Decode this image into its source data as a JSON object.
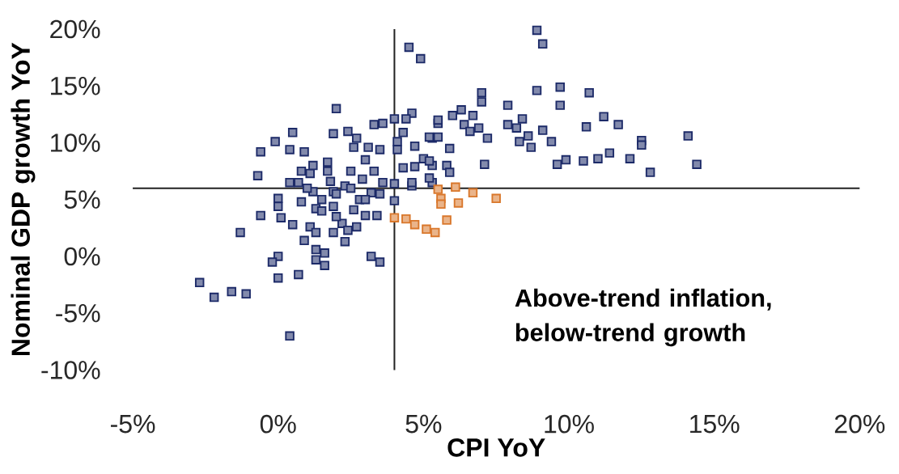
{
  "chart_data": {
    "type": "scatter",
    "xlabel": "CPI YoY",
    "ylabel": "Nominal GDP growth YoY",
    "xlim": [
      -5,
      20
    ],
    "ylim": [
      -10,
      20
    ],
    "xticks": [
      {
        "value": -5,
        "label": "-5%"
      },
      {
        "value": 0,
        "label": "0%"
      },
      {
        "value": 5,
        "label": "5%"
      },
      {
        "value": 10,
        "label": "10%"
      },
      {
        "value": 15,
        "label": "15%"
      },
      {
        "value": 20,
        "label": "20%"
      }
    ],
    "yticks": [
      {
        "value": -10,
        "label": "-10%"
      },
      {
        "value": -5,
        "label": "-5%"
      },
      {
        "value": 0,
        "label": "0%"
      },
      {
        "value": 5,
        "label": "5%"
      },
      {
        "value": 10,
        "label": "10%"
      },
      {
        "value": 15,
        "label": "15%"
      },
      {
        "value": 20,
        "label": "20%"
      }
    ],
    "marker": "square",
    "grid": false,
    "ref_lines": [
      {
        "axis": "x",
        "value": 4,
        "color": "#222222"
      },
      {
        "axis": "y",
        "value": 6,
        "color": "#222222"
      }
    ],
    "annotations": [
      "Above-trend inflation, below-trend growth"
    ],
    "series": [
      {
        "color": "#1c2a68",
        "x": [
          4.5,
          4.9,
          2.0,
          4.6,
          4.4,
          4.0,
          3.3,
          3.6,
          5.5,
          0.5,
          1.9,
          2.4,
          -0.1,
          -0.6,
          0.4,
          0.9,
          2.7,
          2.6,
          3.1,
          3.5,
          4.3,
          4.1,
          4.1,
          5.3,
          4.7,
          5.0,
          4.3,
          4.7,
          5.3,
          1.7,
          0.8,
          1.1,
          1.7,
          2.9,
          3.3,
          3.6,
          4.0,
          4.6,
          5.3,
          -0.7,
          0.4,
          0.7,
          1.8,
          2.3,
          0.0,
          1.2,
          1.9,
          2.8,
          3.2,
          4.0,
          0.0,
          -0.6,
          0.1,
          0.5,
          1.3,
          1.9,
          2.6,
          3.0,
          3.4,
          1.1,
          2.2,
          2.7,
          -1.3,
          0.9,
          2.3,
          1.3,
          1.9,
          2.4,
          1.3,
          1.6,
          1.3,
          1.6,
          0.0,
          -0.2,
          0.0,
          0.7,
          3.2,
          3.5,
          -2.7,
          -2.2,
          -1.6,
          -1.1,
          0.4,
          8.9,
          9.1,
          8.9,
          9.7,
          10.7,
          9.7,
          7.0,
          7.0,
          7.9,
          6.3,
          6.0,
          6.7,
          5.5,
          6.4,
          6.6,
          6.9,
          7.2,
          7.9,
          8.4,
          8.2,
          8.6,
          9.1,
          8.3,
          8.7,
          9.4,
          10.6,
          11.2,
          11.7,
          12.5,
          12.5,
          14.1,
          14.4,
          12.8,
          12.1,
          11.4,
          11.0,
          10.5,
          9.9,
          9.6,
          7.1,
          5.9,
          5.5,
          5.2,
          5.2,
          5.8,
          5.9,
          5.2,
          4.6,
          1.0,
          1.5,
          2.0,
          2.5,
          1.5,
          2.0,
          3.0,
          3.5,
          2.5,
          3.0,
          1.2,
          0.8
        ],
        "values": [
          18.4,
          17.4,
          13.0,
          12.6,
          12.1,
          12.1,
          11.6,
          11.7,
          11.7,
          10.9,
          10.8,
          11.0,
          10.1,
          9.2,
          9.4,
          9.2,
          10.4,
          9.6,
          9.6,
          9.4,
          10.9,
          10.1,
          9.4,
          10.4,
          9.7,
          8.6,
          7.8,
          7.9,
          8.0,
          8.3,
          7.5,
          7.3,
          7.5,
          6.8,
          7.5,
          6.5,
          6.4,
          6.2,
          6.5,
          7.1,
          6.5,
          6.5,
          6.6,
          6.2,
          5.1,
          5.7,
          5.7,
          5.0,
          5.6,
          4.9,
          4.4,
          3.6,
          3.4,
          2.8,
          4.2,
          4.4,
          4.1,
          3.6,
          3.6,
          2.6,
          2.9,
          2.6,
          2.1,
          1.4,
          1.3,
          2.1,
          2.1,
          2.3,
          0.6,
          0.3,
          -0.3,
          -0.8,
          0.0,
          -0.5,
          -1.9,
          -1.6,
          0.0,
          -0.5,
          -2.3,
          -3.6,
          -3.1,
          -3.3,
          -7.0,
          19.9,
          18.7,
          14.6,
          14.9,
          14.4,
          13.3,
          14.4,
          13.6,
          13.3,
          12.9,
          12.4,
          12.4,
          12.0,
          11.6,
          11.0,
          11.3,
          10.4,
          11.6,
          12.1,
          11.3,
          10.6,
          11.1,
          10.1,
          9.6,
          10.1,
          11.4,
          12.3,
          11.6,
          10.2,
          9.8,
          10.6,
          8.1,
          7.4,
          8.6,
          9.1,
          8.6,
          8.4,
          8.5,
          8.1,
          8.1,
          9.5,
          10.5,
          10.5,
          8.4,
          8.0,
          7.4,
          6.9,
          6.5,
          6.0,
          5.0,
          5.5,
          6.0,
          4.0,
          3.5,
          5.0,
          5.5,
          7.5,
          8.5,
          8.0,
          4.8
        ]
      },
      {
        "color": "#d9772b",
        "x": [
          4.0,
          4.4,
          4.7,
          5.1,
          5.4,
          5.8,
          5.5,
          6.1,
          6.7,
          5.6,
          6.2,
          7.5,
          5.6
        ],
        "values": [
          3.4,
          3.3,
          2.8,
          2.4,
          2.1,
          3.2,
          5.9,
          6.1,
          5.6,
          5.1,
          4.7,
          5.1,
          4.6
        ]
      }
    ]
  }
}
